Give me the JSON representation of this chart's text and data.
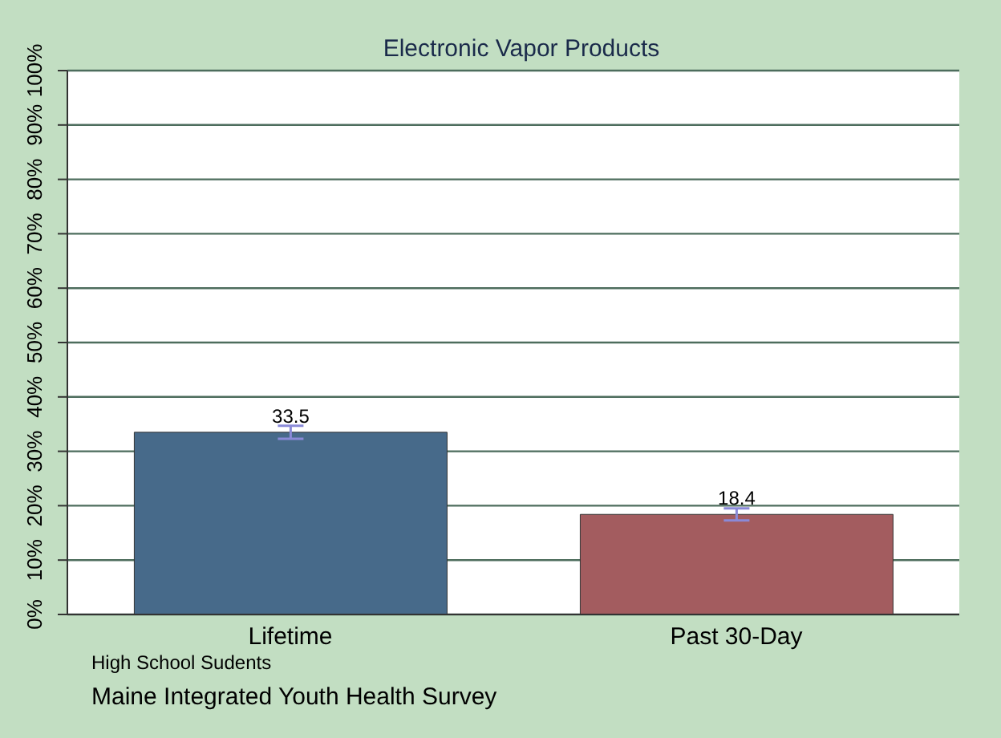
{
  "chart_data": {
    "type": "bar",
    "title": "Electronic Vapor Products",
    "categories": [
      "Lifetime",
      "Past 30-Day"
    ],
    "values": [
      33.5,
      18.4
    ],
    "colors": [
      "#476a8a",
      "#a35c5f"
    ],
    "errors": [
      1.2,
      1.1
    ],
    "data_labels": true,
    "ylim": [
      0,
      100
    ],
    "yticks": [
      {
        "value": 0,
        "label": "0%"
      },
      {
        "value": 10,
        "label": "10%"
      },
      {
        "value": 20,
        "label": "20%"
      },
      {
        "value": 30,
        "label": "30%"
      },
      {
        "value": 40,
        "label": "40%"
      },
      {
        "value": 50,
        "label": "50%"
      },
      {
        "value": 60,
        "label": "60%"
      },
      {
        "value": 70,
        "label": "70%"
      },
      {
        "value": 80,
        "label": "80%"
      },
      {
        "value": 90,
        "label": "90%"
      },
      {
        "value": 100,
        "label": "100%"
      }
    ],
    "grid": "y",
    "annotations": [
      "High School Sudents",
      "Maine Integrated Youth Health Survey"
    ]
  }
}
